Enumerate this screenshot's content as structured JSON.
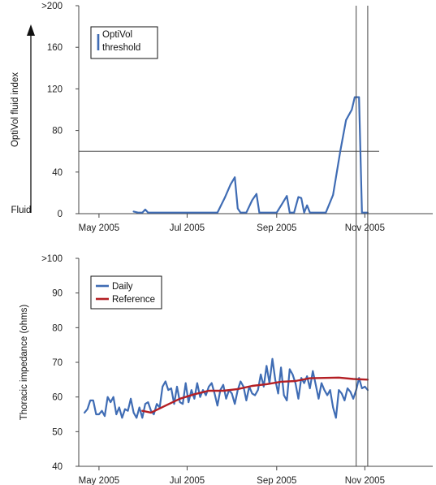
{
  "chart_data": [
    {
      "type": "line",
      "ylabel": "OptiVol fluid index",
      "y_bottom_label": "Fluid",
      "ylim": [
        0,
        200
      ],
      "yticks": [
        {
          "value": 0,
          "label": "0"
        },
        {
          "value": 40,
          "label": "40"
        },
        {
          "value": 80,
          "label": "80"
        },
        {
          "value": 120,
          "label": "120"
        },
        {
          "value": 160,
          "label": "160"
        },
        {
          "value": 200,
          "label": ">200"
        }
      ],
      "threshold": 60,
      "legend": {
        "position": "top-left",
        "entries": [
          {
            "label_line1": "OptiVol",
            "label_line2": "threshold",
            "color": "#3f6cb4"
          }
        ]
      },
      "series": [
        {
          "name": "OptiVol threshold",
          "color": "#3f6cb4",
          "points": [
            [
              "2005-05-25",
              2
            ],
            [
              "2005-05-28",
              1
            ],
            [
              "2005-05-31",
              1
            ],
            [
              "2005-06-02",
              4
            ],
            [
              "2005-06-04",
              1
            ],
            [
              "2005-06-20",
              1
            ],
            [
              "2005-07-10",
              1
            ],
            [
              "2005-07-22",
              1
            ],
            [
              "2005-07-27",
              15
            ],
            [
              "2005-07-31",
              28
            ],
            [
              "2005-08-03",
              35
            ],
            [
              "2005-08-05",
              5
            ],
            [
              "2005-08-07",
              1
            ],
            [
              "2005-08-11",
              1
            ],
            [
              "2005-08-15",
              13
            ],
            [
              "2005-08-18",
              19
            ],
            [
              "2005-08-20",
              1
            ],
            [
              "2005-08-29",
              1
            ],
            [
              "2005-09-01",
              1
            ],
            [
              "2005-09-05",
              10
            ],
            [
              "2005-09-08",
              17
            ],
            [
              "2005-09-10",
              1
            ],
            [
              "2005-09-13",
              1
            ],
            [
              "2005-09-16",
              16
            ],
            [
              "2005-09-18",
              15
            ],
            [
              "2005-09-20",
              1
            ],
            [
              "2005-09-22",
              8
            ],
            [
              "2005-09-24",
              1
            ],
            [
              "2005-10-05",
              1
            ],
            [
              "2005-10-10",
              18
            ],
            [
              "2005-10-15",
              60
            ],
            [
              "2005-10-19",
              90
            ],
            [
              "2005-10-23",
              100
            ],
            [
              "2005-10-25",
              112
            ],
            [
              "2005-10-28",
              112
            ],
            [
              "2005-10-30",
              1
            ],
            [
              "2005-11-03",
              1
            ]
          ]
        }
      ]
    },
    {
      "type": "line",
      "ylabel": "Thoracic impedance (ohms)",
      "ylim": [
        40,
        100
      ],
      "yticks": [
        {
          "value": 40,
          "label": "40"
        },
        {
          "value": 50,
          "label": "50"
        },
        {
          "value": 60,
          "label": "60"
        },
        {
          "value": 70,
          "label": "70"
        },
        {
          "value": 80,
          "label": "80"
        },
        {
          "value": 90,
          "label": "90"
        },
        {
          "value": 100,
          "label": ">100"
        }
      ],
      "legend": {
        "position": "top-left",
        "entries": [
          {
            "label": "Daily",
            "color": "#3f6cb4"
          },
          {
            "label": "Reference",
            "color": "#b41f24"
          }
        ]
      },
      "series": [
        {
          "name": "Daily",
          "color": "#3f6cb4",
          "points": [
            [
              "2005-04-21",
              55.5
            ],
            [
              "2005-04-23",
              56.5
            ],
            [
              "2005-04-25",
              59
            ],
            [
              "2005-04-27",
              59
            ],
            [
              "2005-04-29",
              55
            ],
            [
              "2005-05-01",
              55
            ],
            [
              "2005-05-03",
              56
            ],
            [
              "2005-05-05",
              54.5
            ],
            [
              "2005-05-07",
              60
            ],
            [
              "2005-05-09",
              58.5
            ],
            [
              "2005-05-11",
              60
            ],
            [
              "2005-05-13",
              55
            ],
            [
              "2005-05-15",
              57
            ],
            [
              "2005-05-17",
              54
            ],
            [
              "2005-05-19",
              56.5
            ],
            [
              "2005-05-21",
              56
            ],
            [
              "2005-05-23",
              59.5
            ],
            [
              "2005-05-25",
              55.5
            ],
            [
              "2005-05-27",
              54
            ],
            [
              "2005-05-29",
              57
            ],
            [
              "2005-05-31",
              54
            ],
            [
              "2005-06-02",
              58
            ],
            [
              "2005-06-04",
              58.5
            ],
            [
              "2005-06-06",
              56
            ],
            [
              "2005-06-08",
              55
            ],
            [
              "2005-06-10",
              58
            ],
            [
              "2005-06-12",
              57
            ],
            [
              "2005-06-14",
              63
            ],
            [
              "2005-06-16",
              64.5
            ],
            [
              "2005-06-18",
              62
            ],
            [
              "2005-06-20",
              62.5
            ],
            [
              "2005-06-22",
              58
            ],
            [
              "2005-06-24",
              63
            ],
            [
              "2005-06-26",
              58.5
            ],
            [
              "2005-06-28",
              58
            ],
            [
              "2005-06-30",
              64
            ],
            [
              "2005-07-02",
              58.5
            ],
            [
              "2005-07-04",
              62
            ],
            [
              "2005-07-06",
              59.5
            ],
            [
              "2005-07-08",
              64
            ],
            [
              "2005-07-10",
              60
            ],
            [
              "2005-07-12",
              62
            ],
            [
              "2005-07-14",
              60.5
            ],
            [
              "2005-07-16",
              63
            ],
            [
              "2005-07-18",
              64
            ],
            [
              "2005-07-20",
              61
            ],
            [
              "2005-07-22",
              57.5
            ],
            [
              "2005-07-24",
              62
            ],
            [
              "2005-07-26",
              63.5
            ],
            [
              "2005-07-28",
              59.5
            ],
            [
              "2005-07-30",
              62
            ],
            [
              "2005-08-01",
              61
            ],
            [
              "2005-08-03",
              58
            ],
            [
              "2005-08-05",
              62
            ],
            [
              "2005-08-07",
              64.5
            ],
            [
              "2005-08-09",
              63
            ],
            [
              "2005-08-11",
              59
            ],
            [
              "2005-08-13",
              63
            ],
            [
              "2005-08-15",
              61
            ],
            [
              "2005-08-17",
              60.5
            ],
            [
              "2005-08-19",
              62
            ],
            [
              "2005-08-21",
              66.5
            ],
            [
              "2005-08-23",
              63
            ],
            [
              "2005-08-25",
              69
            ],
            [
              "2005-08-27",
              64
            ],
            [
              "2005-08-29",
              71
            ],
            [
              "2005-08-31",
              65
            ],
            [
              "2005-09-02",
              61
            ],
            [
              "2005-09-04",
              68.5
            ],
            [
              "2005-09-06",
              60.5
            ],
            [
              "2005-09-08",
              59
            ],
            [
              "2005-09-10",
              68
            ],
            [
              "2005-09-12",
              66.5
            ],
            [
              "2005-09-14",
              64
            ],
            [
              "2005-09-16",
              59.5
            ],
            [
              "2005-09-18",
              65.5
            ],
            [
              "2005-09-20",
              64
            ],
            [
              "2005-09-22",
              66
            ],
            [
              "2005-09-24",
              62.5
            ],
            [
              "2005-09-26",
              67.5
            ],
            [
              "2005-09-28",
              63.5
            ],
            [
              "2005-09-30",
              59.5
            ],
            [
              "2005-10-02",
              64
            ],
            [
              "2005-10-04",
              62
            ],
            [
              "2005-10-06",
              60.5
            ],
            [
              "2005-10-08",
              62
            ],
            [
              "2005-10-10",
              57
            ],
            [
              "2005-10-12",
              54
            ],
            [
              "2005-10-14",
              62
            ],
            [
              "2005-10-16",
              61
            ],
            [
              "2005-10-18",
              59
            ],
            [
              "2005-10-20",
              62.5
            ],
            [
              "2005-10-22",
              61.5
            ],
            [
              "2005-10-24",
              59.5
            ],
            [
              "2005-10-26",
              62
            ],
            [
              "2005-10-28",
              65.5
            ],
            [
              "2005-10-30",
              62.5
            ],
            [
              "2005-11-01",
              63
            ],
            [
              "2005-11-03",
              62
            ]
          ]
        },
        {
          "name": "Reference",
          "color": "#b41f24",
          "points": [
            [
              "2005-05-31",
              56
            ],
            [
              "2005-06-06",
              55.5
            ],
            [
              "2005-06-16",
              57.5
            ],
            [
              "2005-06-26",
              59.5
            ],
            [
              "2005-07-06",
              60.8
            ],
            [
              "2005-07-16",
              61.8
            ],
            [
              "2005-07-26",
              61.8
            ],
            [
              "2005-08-05",
              62.3
            ],
            [
              "2005-08-15",
              63.2
            ],
            [
              "2005-08-25",
              63.7
            ],
            [
              "2005-09-04",
              64.4
            ],
            [
              "2005-09-14",
              64.6
            ],
            [
              "2005-09-24",
              65.4
            ],
            [
              "2005-10-04",
              65.5
            ],
            [
              "2005-10-14",
              65.6
            ],
            [
              "2005-10-24",
              65.2
            ],
            [
              "2005-11-03",
              65
            ]
          ]
        }
      ]
    }
  ],
  "shared_x": {
    "ticks": [
      {
        "date": "2005-05-01",
        "label": "May 2005"
      },
      {
        "date": "2005-07-01",
        "label": "Jul 2005"
      },
      {
        "date": "2005-09-01",
        "label": "Sep 2005"
      },
      {
        "date": "2005-11-01",
        "label": "Nov 2005"
      }
    ],
    "xlim": [
      "2005-04-17",
      "2005-12-18"
    ]
  },
  "event_markers": [
    "2005-10-26",
    "2005-11-03"
  ]
}
